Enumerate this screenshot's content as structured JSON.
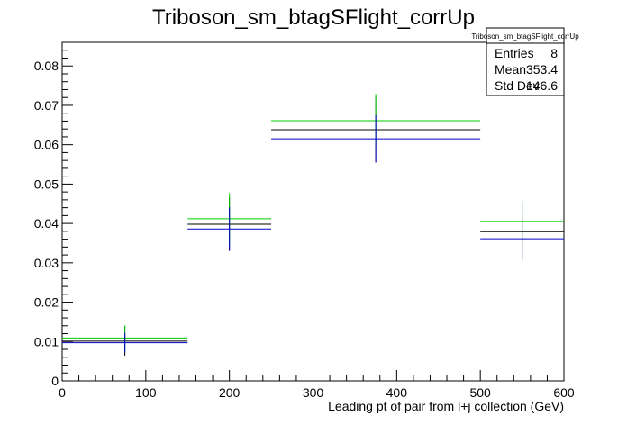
{
  "chart_data": {
    "type": "histogram",
    "title": "Triboson_sm_btagSFlight_corrUp",
    "xlabel": "Leading pt of pair from l+j collection (GeV)",
    "ylabel": "",
    "xlim": [
      0,
      600
    ],
    "ylim": [
      0,
      0.086
    ],
    "x_ticks": [
      0,
      100,
      200,
      300,
      400,
      500,
      600
    ],
    "y_ticks": [
      0,
      0.01,
      0.02,
      0.03,
      0.04,
      0.05,
      0.06,
      0.07,
      0.08
    ],
    "y_tick_labels": [
      "0",
      "0.01",
      "0.02",
      "0.03",
      "0.04",
      "0.05",
      "0.06",
      "0.07",
      "0.08"
    ],
    "grid": false,
    "series": [
      {
        "color": "#000000",
        "bins": [
          {
            "x_low": 0,
            "x_high": 150,
            "x_center": 75,
            "y": 0.0101,
            "err": 0.0037
          },
          {
            "x_low": 150,
            "x_high": 250,
            "x_center": 200,
            "y": 0.0398,
            "err": 0.0068
          },
          {
            "x_low": 250,
            "x_high": 500,
            "x_center": 375,
            "y": 0.0638,
            "err": 0.0083
          },
          {
            "x_low": 500,
            "x_high": 600,
            "x_center": 550,
            "y": 0.0379,
            "err": 0.0071
          }
        ]
      },
      {
        "color": "#00cc00",
        "bins": [
          {
            "x_low": 0,
            "x_high": 150,
            "x_center": 75,
            "y": 0.0109,
            "err": 0.0032
          },
          {
            "x_low": 150,
            "x_high": 250,
            "x_center": 200,
            "y": 0.0412,
            "err": 0.0065
          },
          {
            "x_low": 250,
            "x_high": 500,
            "x_center": 375,
            "y": 0.0661,
            "err": 0.0068
          },
          {
            "x_low": 500,
            "x_high": 600,
            "x_center": 550,
            "y": 0.0405,
            "err": 0.0058
          }
        ]
      },
      {
        "color": "#0000cc",
        "bins": [
          {
            "x_low": 0,
            "x_high": 150,
            "x_center": 75,
            "y": 0.0097,
            "err": 0.0025
          },
          {
            "x_low": 150,
            "x_high": 250,
            "x_center": 200,
            "y": 0.0386,
            "err": 0.0055
          },
          {
            "x_low": 250,
            "x_high": 500,
            "x_center": 375,
            "y": 0.0615,
            "err": 0.006
          },
          {
            "x_low": 500,
            "x_high": 600,
            "x_center": 550,
            "y": 0.0361,
            "err": 0.0055
          }
        ]
      }
    ],
    "stats_box": {
      "title": "Triboson_sm_btagSFlight_corrUp",
      "rows": [
        {
          "label": "Entries",
          "value": "8"
        },
        {
          "label": "Mean",
          "value": "353.4"
        },
        {
          "label": "Std Dev",
          "value": "146.6"
        }
      ]
    }
  }
}
